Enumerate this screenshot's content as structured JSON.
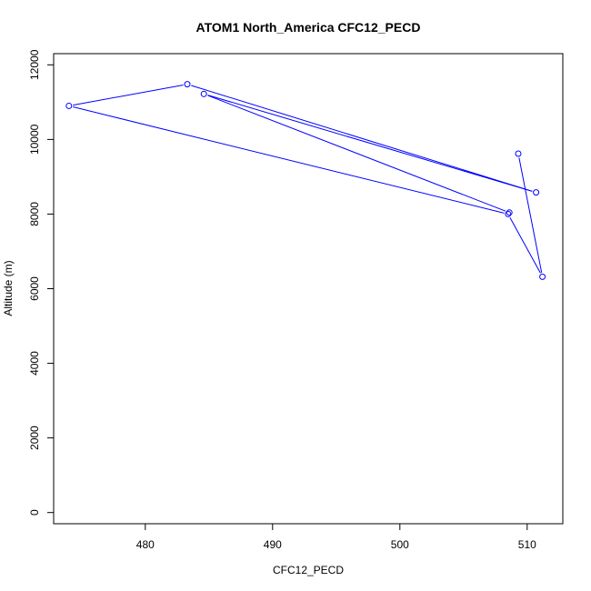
{
  "chart_data": {
    "type": "line",
    "title": "ATOM1 North_America CFC12_PECD",
    "xlabel": "CFC12_PECD",
    "ylabel": "Altitude (m)",
    "xlim": [
      472.8,
      512.8
    ],
    "ylim": [
      -300,
      12300
    ],
    "x_ticks": [
      480,
      490,
      500,
      510
    ],
    "y_ticks": [
      0,
      2000,
      4000,
      6000,
      8000,
      10000,
      12000
    ],
    "grid": false,
    "line_color": "#0000ff",
    "marker": "open-circle",
    "series": [
      {
        "x": [
          509.3,
          511.2,
          508.5,
          474.0,
          483.3,
          510.7,
          484.6,
          508.6
        ],
        "y": [
          9620,
          6320,
          8000,
          10900,
          11480,
          8580,
          11220,
          8040
        ]
      }
    ]
  }
}
